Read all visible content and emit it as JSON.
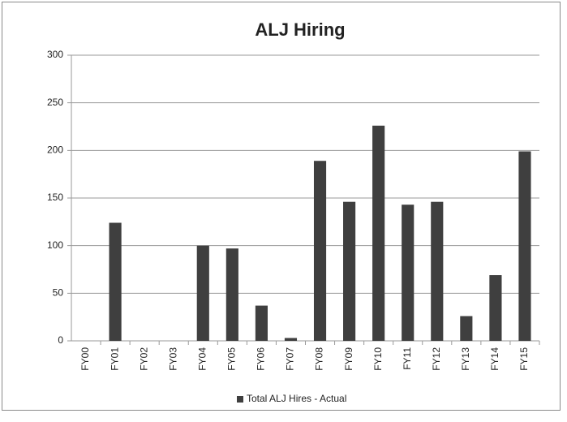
{
  "chart_data": {
    "type": "bar",
    "title": "ALJ Hiring",
    "categories": [
      "FY00",
      "FY01",
      "FY02",
      "FY03",
      "FY04",
      "FY05",
      "FY06",
      "FY07",
      "FY08",
      "FY09",
      "FY10",
      "FY11",
      "FY12",
      "FY13",
      "FY14",
      "FY15"
    ],
    "series": [
      {
        "name": "Total ALJ Hires - Actual",
        "color": "#3f3f3f",
        "values": [
          0,
          124,
          0,
          0,
          100,
          97,
          37,
          3,
          189,
          146,
          226,
          143,
          146,
          26,
          69,
          199
        ]
      }
    ],
    "ylim": [
      0,
      300
    ],
    "yticks": [
      0,
      50,
      100,
      150,
      200,
      250,
      300
    ],
    "grid": true,
    "legend": "bottom"
  }
}
